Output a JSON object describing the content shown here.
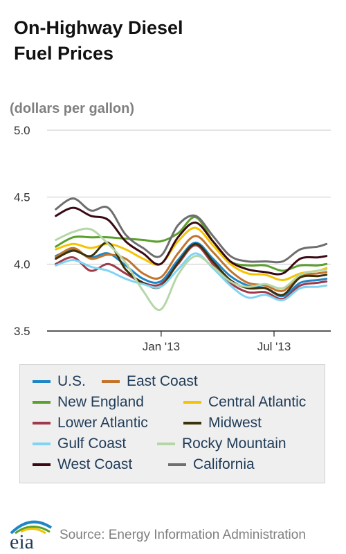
{
  "chart_data": {
    "type": "line",
    "title": "On-Highway Diesel\nFuel Prices",
    "ylabel": "(dollars per gallon)",
    "xlabel": "",
    "ylim": [
      3.5,
      5.0
    ],
    "yticks": [
      "5.0",
      "4.5",
      "4.0",
      "3.5"
    ],
    "ytick_values": [
      5.0,
      4.5,
      4.0,
      3.5
    ],
    "xlim": [
      "2012-07-02",
      "2013-09-30"
    ],
    "x_ticks": [
      {
        "label": "Jan '13",
        "date": "2013-01-01"
      },
      {
        "label": "Jul '13",
        "date": "2013-07-01"
      }
    ],
    "grid": true,
    "legend_position": "bottom",
    "x": [
      "2012-07-16",
      "2012-08-13",
      "2012-09-10",
      "2012-10-08",
      "2012-11-05",
      "2012-12-03",
      "2012-12-31",
      "2013-01-28",
      "2013-02-25",
      "2013-03-25",
      "2013-04-22",
      "2013-05-20",
      "2013-06-17",
      "2013-07-15",
      "2013-08-12",
      "2013-09-09",
      "2013-09-23"
    ],
    "series": [
      {
        "name": "U.S.",
        "color": "#1f86c6",
        "values": [
          4.06,
          4.11,
          4.05,
          4.08,
          3.99,
          3.89,
          3.87,
          4.03,
          4.16,
          4.04,
          3.91,
          3.84,
          3.82,
          3.76,
          3.86,
          3.88,
          3.89
        ]
      },
      {
        "name": "East Coast",
        "color": "#c2742d",
        "values": [
          4.05,
          4.12,
          4.04,
          4.07,
          4.04,
          3.93,
          3.9,
          4.08,
          4.21,
          4.09,
          3.95,
          3.86,
          3.84,
          3.8,
          3.91,
          3.93,
          3.94
        ]
      },
      {
        "name": "New England",
        "color": "#5aa02c",
        "values": [
          4.13,
          4.2,
          4.2,
          4.2,
          4.19,
          4.18,
          4.17,
          4.23,
          4.35,
          4.17,
          4.02,
          3.99,
          3.99,
          3.95,
          3.99,
          3.99,
          4.0
        ]
      },
      {
        "name": "Central Atlantic",
        "color": "#f5c400",
        "values": [
          4.11,
          4.15,
          4.12,
          4.15,
          4.11,
          4.04,
          4.0,
          4.17,
          4.27,
          4.14,
          4.0,
          3.93,
          3.92,
          3.88,
          3.93,
          3.95,
          3.97
        ]
      },
      {
        "name": "Lower Atlantic",
        "color": "#a03a4a",
        "values": [
          4.0,
          4.05,
          3.95,
          4.0,
          3.93,
          3.86,
          3.85,
          4.0,
          4.14,
          4.0,
          3.86,
          3.79,
          3.79,
          3.74,
          3.84,
          3.86,
          3.87
        ]
      },
      {
        "name": "Midwest",
        "color": "#3c3209",
        "values": [
          4.04,
          4.1,
          4.06,
          4.16,
          3.96,
          3.86,
          3.83,
          4.01,
          4.15,
          4.02,
          3.88,
          3.82,
          3.82,
          3.77,
          3.9,
          3.91,
          3.92
        ]
      },
      {
        "name": "Gulf Coast",
        "color": "#7fd4f4",
        "values": [
          3.99,
          4.03,
          3.98,
          3.95,
          3.89,
          3.85,
          3.83,
          3.96,
          4.08,
          3.97,
          3.84,
          3.75,
          3.77,
          3.73,
          3.82,
          3.83,
          3.84
        ]
      },
      {
        "name": "Rocky Mountain",
        "color": "#b5d7a8",
        "values": [
          4.18,
          4.24,
          4.26,
          4.15,
          4.01,
          3.8,
          3.66,
          3.92,
          4.06,
          3.98,
          3.87,
          3.83,
          3.85,
          3.82,
          3.92,
          3.95,
          3.96
        ]
      },
      {
        "name": "West Coast",
        "color": "#3a0a14",
        "values": [
          4.36,
          4.42,
          4.36,
          4.33,
          4.17,
          4.08,
          4.0,
          4.2,
          4.31,
          4.17,
          4.02,
          3.96,
          3.94,
          3.93,
          4.04,
          4.05,
          4.06
        ]
      },
      {
        "name": "California",
        "color": "#6e6e6e",
        "values": [
          4.41,
          4.49,
          4.4,
          4.42,
          4.22,
          4.12,
          4.06,
          4.29,
          4.36,
          4.21,
          4.06,
          4.02,
          4.02,
          4.02,
          4.11,
          4.13,
          4.15
        ]
      }
    ]
  },
  "footer": {
    "logo_text": "eia",
    "source": "Source: Energy Information Administration"
  }
}
